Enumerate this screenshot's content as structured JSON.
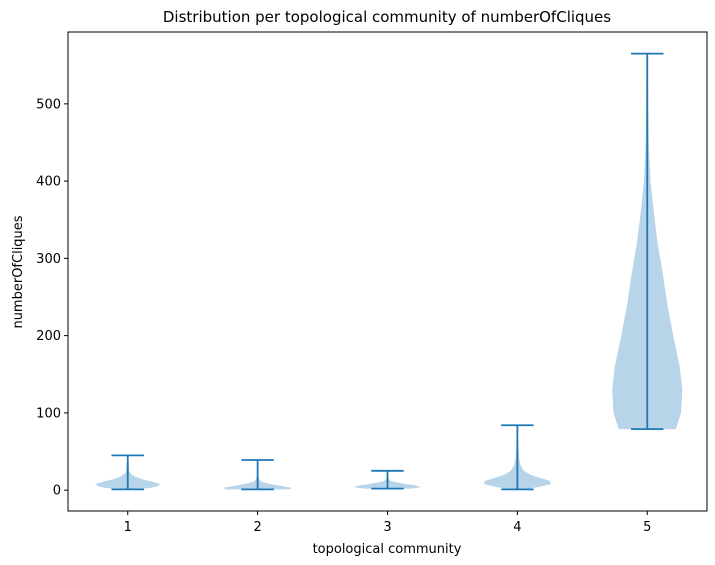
{
  "chart_data": {
    "type": "violin",
    "title": "Distribution per topological community of numberOfCliques",
    "xlabel": "topological community",
    "ylabel": "numberOfCliques",
    "categories": [
      "1",
      "2",
      "3",
      "4",
      "5"
    ],
    "ylim": [
      -27,
      593
    ],
    "yticks": [
      0,
      100,
      200,
      300,
      400,
      500
    ],
    "color_fill": "#b8d4e8",
    "color_line": "#1f77b4",
    "series": [
      {
        "x": 1,
        "min": 1,
        "max": 45,
        "profile": [
          [
            1,
            0.06
          ],
          [
            3,
            0.18
          ],
          [
            5,
            0.23
          ],
          [
            8,
            0.25
          ],
          [
            11,
            0.19
          ],
          [
            14,
            0.11
          ],
          [
            18,
            0.05
          ],
          [
            22,
            0.02
          ],
          [
            26,
            0.01
          ],
          [
            32,
            0.01
          ],
          [
            38,
            0.006
          ],
          [
            45,
            0.005
          ]
        ]
      },
      {
        "x": 2,
        "min": 1,
        "max": 39,
        "profile": [
          [
            1,
            0.25
          ],
          [
            3,
            0.26
          ],
          [
            5,
            0.2
          ],
          [
            7,
            0.13
          ],
          [
            9,
            0.07
          ],
          [
            11,
            0.03
          ],
          [
            14,
            0.012
          ],
          [
            20,
            0.006
          ],
          [
            28,
            0.004
          ],
          [
            39,
            0.003
          ]
        ]
      },
      {
        "x": 3,
        "min": 2,
        "max": 25,
        "profile": [
          [
            2,
            0.18
          ],
          [
            4,
            0.26
          ],
          [
            6,
            0.22
          ],
          [
            8,
            0.14
          ],
          [
            10,
            0.07
          ],
          [
            12,
            0.025
          ],
          [
            15,
            0.01
          ],
          [
            20,
            0.005
          ],
          [
            25,
            0.003
          ]
        ]
      },
      {
        "x": 4,
        "min": 1,
        "max": 84,
        "profile": [
          [
            1,
            0.05
          ],
          [
            4,
            0.16
          ],
          [
            8,
            0.26
          ],
          [
            12,
            0.25
          ],
          [
            16,
            0.17
          ],
          [
            20,
            0.1
          ],
          [
            25,
            0.05
          ],
          [
            32,
            0.025
          ],
          [
            40,
            0.015
          ],
          [
            50,
            0.01
          ],
          [
            60,
            0.007
          ],
          [
            70,
            0.005
          ],
          [
            84,
            0.004
          ]
        ]
      },
      {
        "x": 5,
        "min": 79,
        "max": 565,
        "profile": [
          [
            79,
            0.22
          ],
          [
            100,
            0.26
          ],
          [
            130,
            0.27
          ],
          [
            160,
            0.25
          ],
          [
            200,
            0.2
          ],
          [
            240,
            0.155
          ],
          [
            280,
            0.12
          ],
          [
            320,
            0.08
          ],
          [
            360,
            0.05
          ],
          [
            400,
            0.025
          ],
          [
            450,
            0.012
          ],
          [
            500,
            0.008
          ],
          [
            540,
            0.006
          ],
          [
            565,
            0.005
          ]
        ]
      }
    ]
  }
}
